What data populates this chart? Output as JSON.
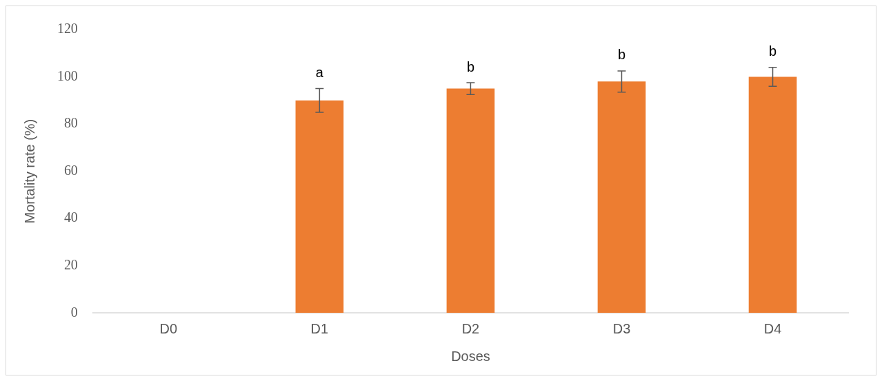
{
  "chart_data": {
    "type": "bar",
    "xlabel": "Doses",
    "ylabel": "Mortality rate (%)",
    "categories": [
      "D0",
      "D1",
      "D2",
      "D3",
      "D4"
    ],
    "values": [
      0,
      90,
      95,
      98,
      100
    ],
    "errors": [
      null,
      5,
      2.5,
      4.5,
      4
    ],
    "color": "#ed7d31",
    "ylim": [
      0,
      120
    ],
    "yticks": [
      0,
      20,
      40,
      60,
      80,
      100,
      120
    ],
    "grid": false,
    "legend": false,
    "annotations": [
      "a",
      "b",
      "b",
      "b"
    ]
  }
}
